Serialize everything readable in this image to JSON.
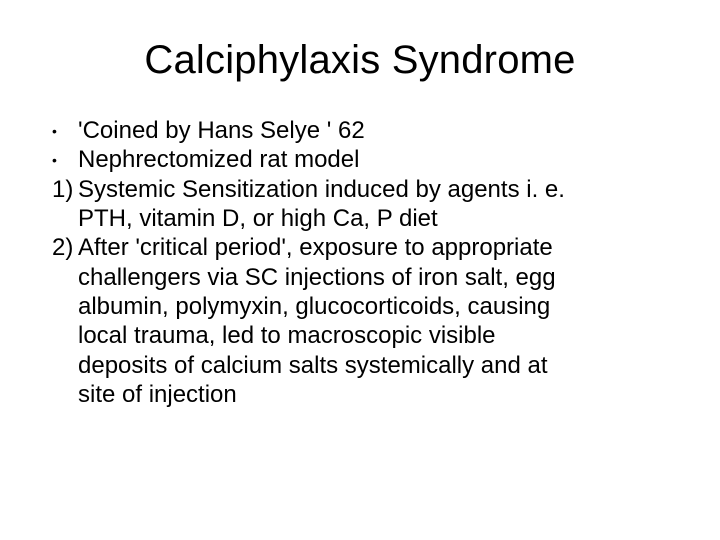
{
  "slide": {
    "title": "Calciphylaxis Syndrome",
    "bullets": [
      {
        "marker": "•",
        "marker_kind": "dot",
        "text": "'Coined by Hans Selye ' 62"
      },
      {
        "marker": "•",
        "marker_kind": "dot",
        "text": "Nephrectomized rat model"
      },
      {
        "marker": "1)",
        "marker_kind": "num",
        "text": "Systemic Sensitization induced by agents i. e."
      },
      {
        "marker": "",
        "marker_kind": "indent",
        "text": "PTH, vitamin D, or high Ca, P diet"
      },
      {
        "marker": "2)",
        "marker_kind": "num",
        "text": "After 'critical period', exposure to appropriate"
      },
      {
        "marker": "",
        "marker_kind": "indent",
        "text": "challengers via SC injections of iron salt, egg"
      },
      {
        "marker": "",
        "marker_kind": "indent",
        "text": "albumin, polymyxin, glucocorticoids, causing"
      },
      {
        "marker": "",
        "marker_kind": "indent",
        "text": "local trauma, led to macroscopic visible"
      },
      {
        "marker": "",
        "marker_kind": "indent",
        "text": "deposits of calcium salts systemically and at"
      },
      {
        "marker": "",
        "marker_kind": "indent",
        "text": "site of injection"
      }
    ]
  },
  "style": {
    "background_color": "#ffffff",
    "text_color": "#000000",
    "title_fontsize_pt": 30,
    "body_fontsize_pt": 18,
    "font_family": "Arial"
  }
}
